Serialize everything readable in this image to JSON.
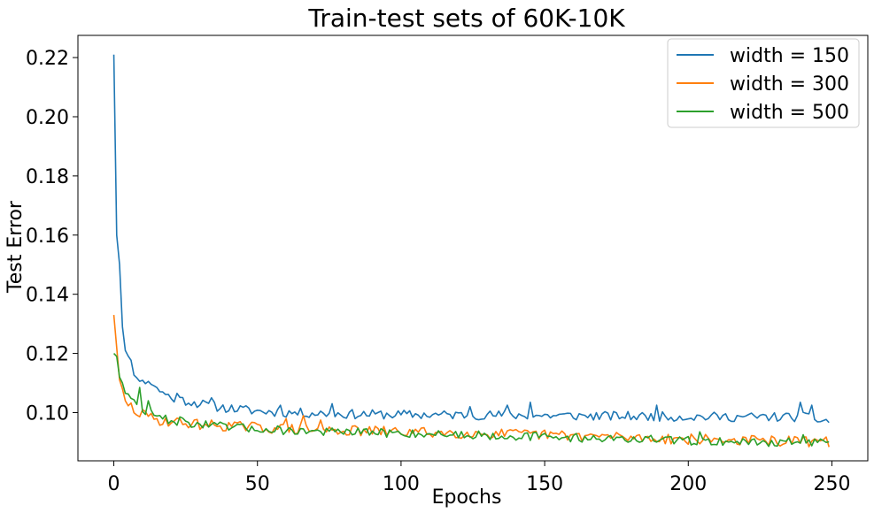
{
  "chart_data": {
    "type": "line",
    "title": "Train-test sets of 60K-10K",
    "xlabel": "Epochs",
    "ylabel": "Test Error",
    "xlim": [
      -12.5,
      262.5
    ],
    "ylim": [
      0.0837,
      0.2275
    ],
    "xticks": [
      0,
      50,
      100,
      150,
      200,
      250
    ],
    "xtick_labels": [
      "0",
      "50",
      "100",
      "150",
      "200",
      "250"
    ],
    "yticks": [
      0.1,
      0.12,
      0.14,
      0.16,
      0.18,
      0.2,
      0.22
    ],
    "ytick_labels": [
      "0.10",
      "0.12",
      "0.14",
      "0.16",
      "0.18",
      "0.20",
      "0.22"
    ],
    "grid": false,
    "legend_position": "top-right",
    "series": [
      {
        "name": "width = 150",
        "color": "#1f77b4",
        "x_start": 0,
        "x_step": 1,
        "anchors": [
          [
            0,
            0.221
          ],
          [
            1,
            0.16
          ],
          [
            2,
            0.15
          ],
          [
            3,
            0.129
          ],
          [
            4,
            0.121
          ],
          [
            5,
            0.118
          ],
          [
            6,
            0.119
          ],
          [
            7,
            0.112
          ],
          [
            8,
            0.113
          ],
          [
            10,
            0.11
          ],
          [
            12,
            0.111
          ],
          [
            15,
            0.108
          ],
          [
            20,
            0.105
          ],
          [
            25,
            0.104
          ],
          [
            30,
            0.103
          ],
          [
            35,
            0.102
          ],
          [
            40,
            0.1015
          ],
          [
            50,
            0.1005
          ],
          [
            60,
            0.1
          ],
          [
            70,
            0.0998
          ],
          [
            80,
            0.0995
          ],
          [
            100,
            0.0993
          ],
          [
            125,
            0.0992
          ],
          [
            150,
            0.099
          ],
          [
            175,
            0.0988
          ],
          [
            200,
            0.0986
          ],
          [
            225,
            0.0985
          ],
          [
            240,
            0.0985
          ],
          [
            249,
            0.097
          ]
        ],
        "spikes": [
          [
            145,
            0.1035
          ],
          [
            137,
            0.1025
          ],
          [
            124,
            0.102
          ],
          [
            189,
            0.1025
          ],
          [
            239,
            0.1035
          ],
          [
            243,
            0.1025
          ],
          [
            76,
            0.103
          ],
          [
            58,
            0.1025
          ],
          [
            34,
            0.105
          ],
          [
            22,
            0.1065
          ],
          [
            17,
            0.107
          ]
        ],
        "noise": 0.0016,
        "seed": 11
      },
      {
        "name": "width = 300",
        "color": "#ff7f0e",
        "x_start": 0,
        "x_step": 1,
        "anchors": [
          [
            0,
            0.133
          ],
          [
            1,
            0.122
          ],
          [
            2,
            0.111
          ],
          [
            3,
            0.108
          ],
          [
            4,
            0.104
          ],
          [
            6,
            0.102
          ],
          [
            8,
            0.1
          ],
          [
            10,
            0.099
          ],
          [
            15,
            0.0975
          ],
          [
            20,
            0.097
          ],
          [
            30,
            0.096
          ],
          [
            40,
            0.0955
          ],
          [
            50,
            0.095
          ],
          [
            60,
            0.0945
          ],
          [
            75,
            0.094
          ],
          [
            100,
            0.0935
          ],
          [
            125,
            0.093
          ],
          [
            150,
            0.0925
          ],
          [
            175,
            0.0918
          ],
          [
            200,
            0.091
          ],
          [
            225,
            0.0905
          ],
          [
            249,
            0.09
          ]
        ],
        "spikes": [
          [
            66,
            0.099
          ],
          [
            60,
            0.098
          ],
          [
            72,
            0.0975
          ],
          [
            10,
            0.101
          ],
          [
            235,
            0.092
          ]
        ],
        "noise": 0.0018,
        "seed": 29
      },
      {
        "name": "width = 500",
        "color": "#2ca02c",
        "x_start": 0,
        "x_step": 1,
        "anchors": [
          [
            0,
            0.12
          ],
          [
            1,
            0.119
          ],
          [
            2,
            0.112
          ],
          [
            3,
            0.11
          ],
          [
            4,
            0.1065
          ],
          [
            6,
            0.1045
          ],
          [
            8,
            0.103
          ],
          [
            10,
            0.101
          ],
          [
            12,
            0.1
          ],
          [
            15,
            0.0985
          ],
          [
            20,
            0.0975
          ],
          [
            30,
            0.096
          ],
          [
            40,
            0.095
          ],
          [
            50,
            0.0945
          ],
          [
            60,
            0.094
          ],
          [
            75,
            0.0935
          ],
          [
            100,
            0.093
          ],
          [
            125,
            0.0925
          ],
          [
            150,
            0.0918
          ],
          [
            175,
            0.0912
          ],
          [
            200,
            0.0905
          ],
          [
            225,
            0.09
          ],
          [
            249,
            0.09
          ]
        ],
        "spikes": [
          [
            9,
            0.1085
          ],
          [
            12,
            0.104
          ],
          [
            204,
            0.0935
          ],
          [
            240,
            0.0925
          ]
        ],
        "noise": 0.0015,
        "seed": 47
      }
    ]
  }
}
